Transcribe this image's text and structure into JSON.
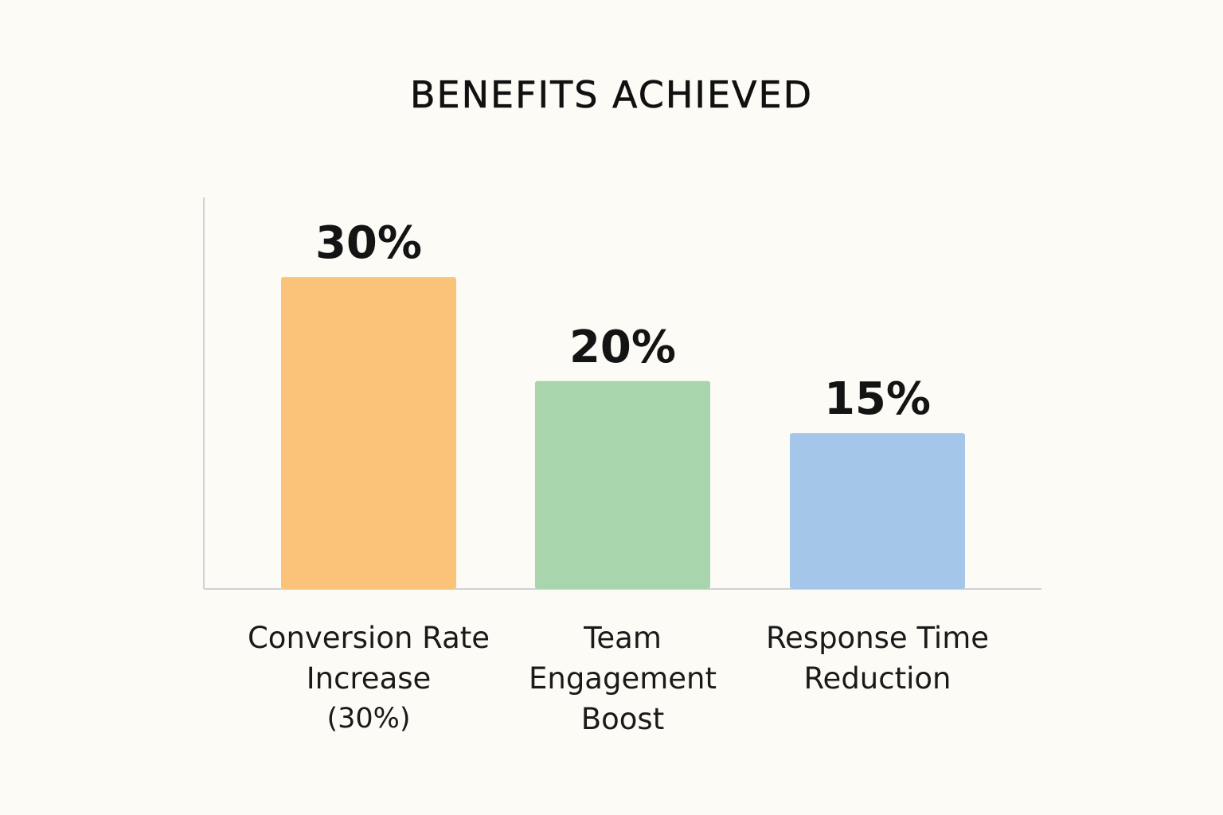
{
  "chart_data": {
    "type": "bar",
    "title": "BENEFITS ACHIEVED",
    "xlabel": "",
    "ylabel": "",
    "ylim": [
      0,
      33
    ],
    "grid": false,
    "legend": "none",
    "categories": [
      [
        "Conversion Rate",
        "Increase",
        "(30%)"
      ],
      [
        "Team",
        "Engagement",
        "Boost"
      ],
      [
        "Response Time",
        "Reduction"
      ]
    ],
    "values": [
      30,
      20,
      15
    ],
    "value_labels": [
      "30%",
      "20%",
      "15%"
    ],
    "colors": [
      "#fbc27a",
      "#a8d5ab",
      "#a4c6e8"
    ],
    "axis_color": "#d2d2d2"
  }
}
